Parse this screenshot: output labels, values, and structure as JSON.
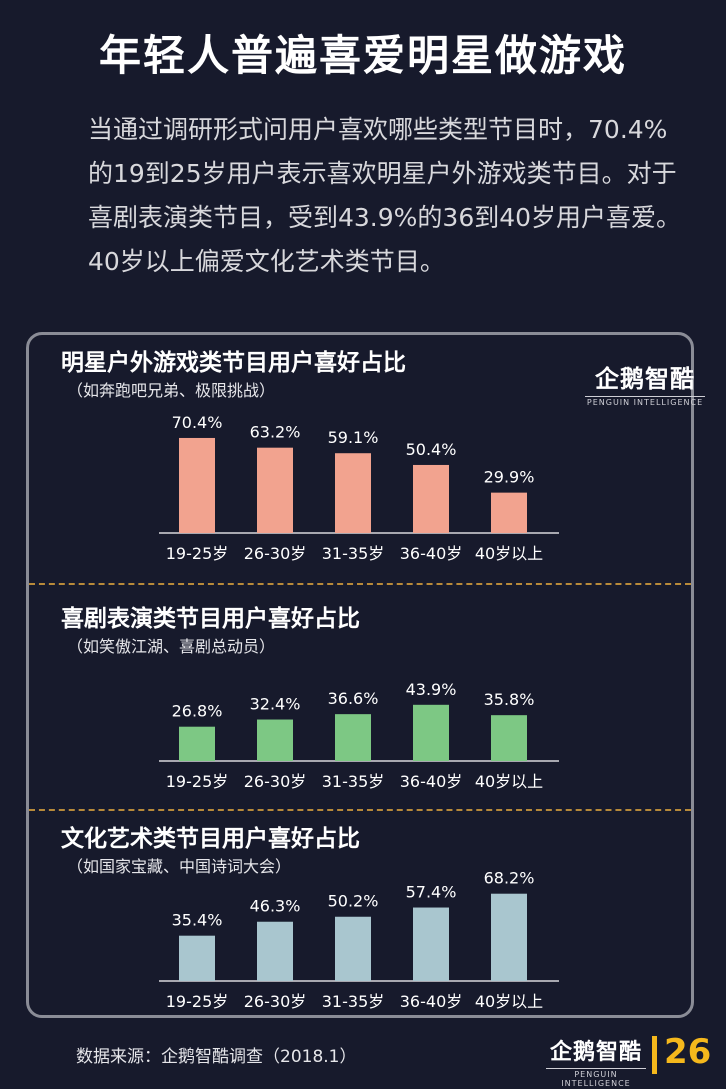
{
  "title": "年轻人普遍喜爱明星做游戏",
  "intro": "当通过调研形式问用户喜欢哪些类型节目时，70.4%的19到25岁用户表示喜欢明星户外游戏类节目。对于喜剧表演类节目，受到43.9%的36到40岁用户喜爱。40岁以上偏爱文化艺术类节目。",
  "logo": {
    "main": "企鹅智酷",
    "sub": "PENGUIN INTELLIGENCE"
  },
  "footer": {
    "source": "数据来源：企鹅智酷调查（2018.1）",
    "page": "26"
  },
  "colors": {
    "outdoor": "#f2a38f",
    "comedy": "#7dc884",
    "culture": "#a9c6cf",
    "accent": "#f5b81c"
  },
  "chart_data": [
    {
      "type": "bar",
      "title": "明星户外游戏类节目用户喜好占比",
      "subtitle": "（如奔跑吧兄弟、极限挑战）",
      "categories": [
        "19-25岁",
        "26-30岁",
        "31-35岁",
        "36-40岁",
        "40岁以上"
      ],
      "values": [
        70.4,
        63.2,
        59.1,
        50.4,
        29.9
      ],
      "labels": [
        "70.4%",
        "63.2%",
        "59.1%",
        "50.4%",
        "29.9%"
      ],
      "color": "#f2a38f"
    },
    {
      "type": "bar",
      "title": "喜剧表演类节目用户喜好占比",
      "subtitle": "（如笑傲江湖、喜剧总动员）",
      "categories": [
        "19-25岁",
        "26-30岁",
        "31-35岁",
        "36-40岁",
        "40岁以上"
      ],
      "values": [
        26.8,
        32.4,
        36.6,
        43.9,
        35.8
      ],
      "labels": [
        "26.8%",
        "32.4%",
        "36.6%",
        "43.9%",
        "35.8%"
      ],
      "color": "#7dc884"
    },
    {
      "type": "bar",
      "title": "文化艺术类节目用户喜好占比",
      "subtitle": "（如国家宝藏、中国诗词大会）",
      "categories": [
        "19-25岁",
        "26-30岁",
        "31-35岁",
        "36-40岁",
        "40岁以上"
      ],
      "values": [
        35.4,
        46.3,
        50.2,
        57.4,
        68.2
      ],
      "labels": [
        "35.4%",
        "46.3%",
        "50.2%",
        "57.4%",
        "68.2%"
      ],
      "color": "#a9c6cf"
    }
  ]
}
